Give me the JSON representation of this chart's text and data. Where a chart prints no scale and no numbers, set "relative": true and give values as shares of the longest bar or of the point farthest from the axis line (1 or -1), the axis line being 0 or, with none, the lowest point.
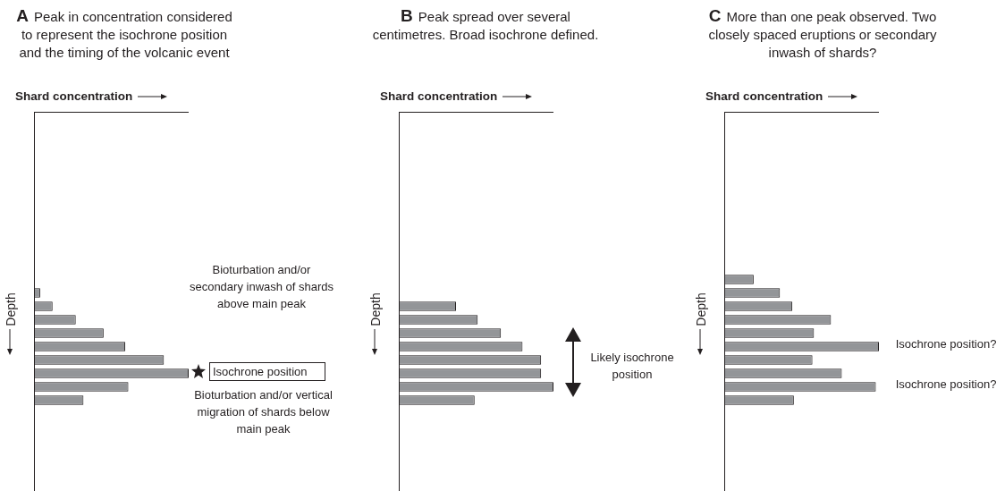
{
  "chart_data": [
    {
      "type": "bar",
      "orientation": "horizontal",
      "relative": true,
      "title": "A",
      "subtitle": "Peak in concentration considered to represent the isochrone position and the timing of the volcanic event",
      "xlabel": "Shard concentration",
      "ylabel": "Depth",
      "color": "#939598",
      "categories": [
        null,
        null,
        null,
        null,
        null,
        null,
        null,
        null,
        null
      ],
      "values": [
        0.04,
        0.12,
        0.27,
        0.45,
        0.59,
        0.84,
        1,
        0.61,
        0.32
      ],
      "annotations": [
        "Bioturbation and/or secondary inwash of shards above main peak",
        "Isochrone position",
        "Bioturbation and/or vertical migration of shards below main peak"
      ]
    },
    {
      "type": "bar",
      "orientation": "horizontal",
      "relative": true,
      "title": "B",
      "subtitle": "Peak spread over several centimetres. Broad isochrone defined.",
      "xlabel": "Shard concentration",
      "ylabel": "Depth",
      "color": "#939598",
      "categories": [
        null,
        null,
        null,
        null,
        null,
        null,
        null,
        null
      ],
      "values": [
        0.37,
        0.51,
        0.66,
        0.8,
        0.92,
        0.92,
        1,
        0.49
      ],
      "annotations": [
        "Likely isochrone position"
      ]
    },
    {
      "type": "bar",
      "orientation": "horizontal",
      "relative": true,
      "title": "C",
      "subtitle": "More than one peak observed. Two closely spaced eruptions or secondary inwash of shards?",
      "xlabel": "Shard concentration",
      "ylabel": "Depth",
      "color": "#939598",
      "categories": [
        null,
        null,
        null,
        null,
        null,
        null,
        null,
        null,
        null,
        null
      ],
      "values": [
        0.19,
        0.36,
        0.44,
        0.69,
        0.58,
        1,
        0.57,
        0.76,
        0.98,
        0.45
      ],
      "annotations": [
        "Isochrone position?",
        "Isochrone position?"
      ]
    }
  ]
}
